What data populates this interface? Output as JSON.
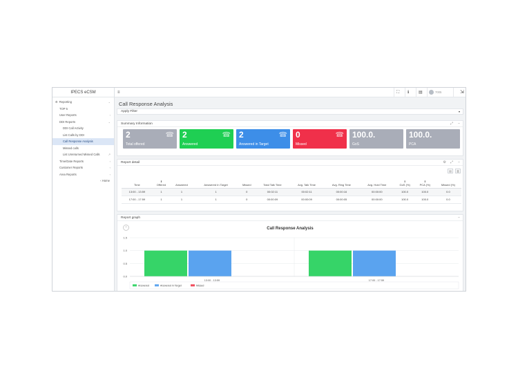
{
  "app": {
    "logo": "IPECS eCSM"
  },
  "sidebar": {
    "items": [
      {
        "label": "Reporting",
        "indent": 0,
        "arrow": "⌄",
        "active": false
      },
      {
        "label": "TOP 5",
        "indent": 1,
        "arrow": "",
        "active": false
      },
      {
        "label": "User Reports",
        "indent": 1,
        "arrow": "‹",
        "active": false
      },
      {
        "label": "DDI Reports",
        "indent": 1,
        "arrow": "⌄",
        "active": false
      },
      {
        "label": "DDI Call Activity",
        "indent": 2,
        "arrow": "",
        "active": false
      },
      {
        "label": "List Calls by DDI",
        "indent": 2,
        "arrow": "",
        "active": false
      },
      {
        "label": "Call Response Analysis",
        "indent": 2,
        "arrow": "",
        "active": true
      },
      {
        "label": "Missed calls",
        "indent": 2,
        "arrow": "",
        "active": false
      },
      {
        "label": "List Unreturned Missed Calls",
        "indent": 2,
        "arrow": "↗",
        "active": false
      },
      {
        "label": "Time/Date Reports",
        "indent": 1,
        "arrow": "‹",
        "active": false
      },
      {
        "label": "Customer Reports",
        "indent": 1,
        "arrow": "‹",
        "active": false
      },
      {
        "label": "Area Reports",
        "indent": 1,
        "arrow": "‹",
        "active": false
      }
    ],
    "home": "‹ Home"
  },
  "topbar": {
    "menu_icon": "≡",
    "fullscreen_icon": "⛶",
    "info_icon": "ℹ",
    "doc_icon": "▤",
    "user": "7005",
    "exit_icon": "⇲"
  },
  "page": {
    "title": "Call Response Analysis",
    "filter": "Apply Filter",
    "filter_arrow": "▾"
  },
  "summary": {
    "title": "Summary Information",
    "cards": [
      {
        "value": "2",
        "label": "Total offered",
        "color": "#a9adb8",
        "icon": "☎"
      },
      {
        "value": "2",
        "label": "Answered",
        "color": "#1fcf53",
        "icon": "☎"
      },
      {
        "value": "2",
        "label": "Answered in Target",
        "color": "#3d8ee8",
        "icon": "☎"
      },
      {
        "value": "0",
        "label": "Missed",
        "color": "#f0304a",
        "icon": "☎"
      },
      {
        "value": "100.0.",
        "label": "GoS",
        "color": "#a9adb8",
        "icon": ""
      },
      {
        "value": "100.0.",
        "label": "PCA",
        "color": "#a9adb8",
        "icon": ""
      }
    ]
  },
  "detail": {
    "title": "Report detail",
    "columns": [
      "Time",
      "Offered",
      "Answered",
      "Answered In Target",
      "Missed",
      "Total Talk Time",
      "Avg. Talk Time",
      "Avg. Ring Time",
      "Avg. Hold Time",
      "GoS (%)",
      "PCA (%)",
      "Missed (%)"
    ],
    "rows": [
      [
        "13:00 - 13:59",
        "1",
        "1",
        "1",
        "0",
        "00:02:11",
        "00:02:11",
        "00:00:16",
        "00:00:00",
        "100.0",
        "100.0",
        "0.0"
      ],
      [
        "17:00 - 17:59",
        "1",
        "1",
        "1",
        "0",
        "00:00:09",
        "00:00:09",
        "00:00:05",
        "00:00:00",
        "100.0",
        "100.0",
        "0.0"
      ]
    ]
  },
  "graph": {
    "title": "Report graph"
  },
  "chart_data": {
    "type": "bar",
    "title": "Call Response Analysis",
    "categories": [
      "13:00 - 13:59",
      "17:00 - 17:59"
    ],
    "series": [
      {
        "name": "Answered",
        "values": [
          1,
          1
        ],
        "color": "#36d468"
      },
      {
        "name": "Answered in Target",
        "values": [
          1,
          1
        ],
        "color": "#5aa3ef"
      },
      {
        "name": "Missed",
        "values": [
          0,
          0
        ],
        "color": "#f04a5a"
      }
    ],
    "yticks": [
      "1.5",
      "1.0",
      "0.5",
      "0.0"
    ],
    "ylim": [
      0,
      1.5
    ],
    "legend": "bottom-left"
  }
}
